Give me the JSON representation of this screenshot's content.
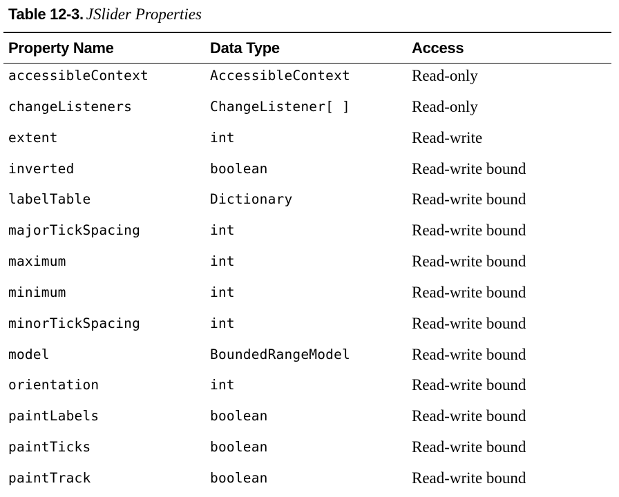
{
  "caption": {
    "label": "Table 12-3.",
    "title": "JSlider Properties"
  },
  "table": {
    "headers": [
      "Property Name",
      "Data Type",
      "Access"
    ],
    "rows": [
      {
        "name": "accessibleContext",
        "type": "AccessibleContext",
        "access": "Read-only"
      },
      {
        "name": "changeListeners",
        "type": "ChangeListener[ ]",
        "access": "Read-only"
      },
      {
        "name": "extent",
        "type": "int",
        "access": "Read-write"
      },
      {
        "name": "inverted",
        "type": "boolean",
        "access": "Read-write bound"
      },
      {
        "name": "labelTable",
        "type": "Dictionary",
        "access": "Read-write bound"
      },
      {
        "name": "majorTickSpacing",
        "type": "int",
        "access": "Read-write bound"
      },
      {
        "name": "maximum",
        "type": "int",
        "access": "Read-write bound"
      },
      {
        "name": "minimum",
        "type": "int",
        "access": "Read-write bound"
      },
      {
        "name": "minorTickSpacing",
        "type": "int",
        "access": "Read-write bound"
      },
      {
        "name": "model",
        "type": "BoundedRangeModel",
        "access": "Read-write bound"
      },
      {
        "name": "orientation",
        "type": "int",
        "access": "Read-write bound"
      },
      {
        "name": "paintLabels",
        "type": "boolean",
        "access": "Read-write bound"
      },
      {
        "name": "paintTicks",
        "type": "boolean",
        "access": "Read-write bound"
      },
      {
        "name": "paintTrack",
        "type": "boolean",
        "access": "Read-write bound"
      }
    ]
  }
}
